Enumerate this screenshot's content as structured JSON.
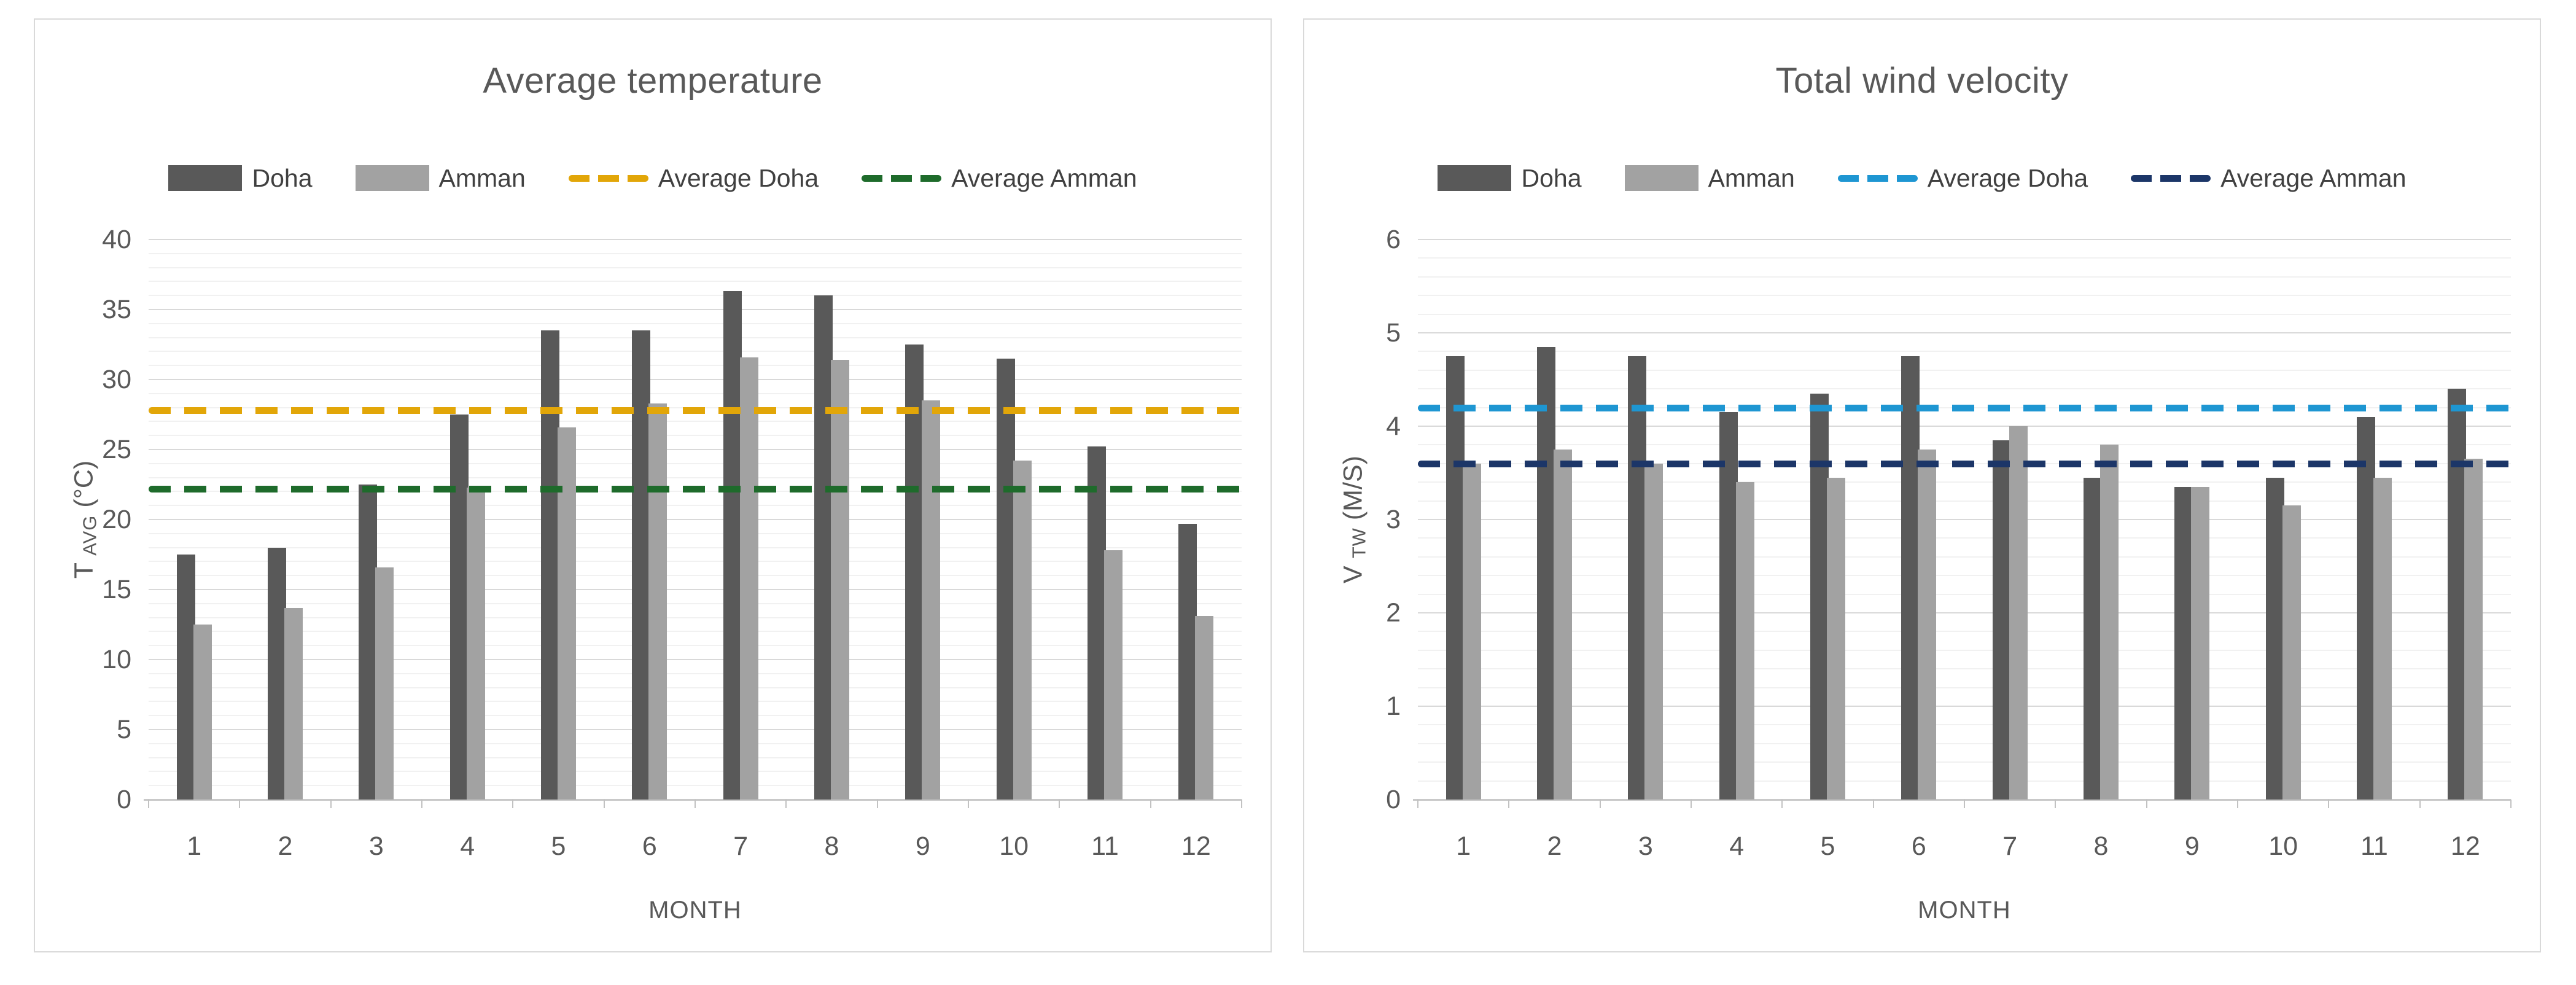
{
  "page": {
    "background": "#ffffff"
  },
  "chart_data": [
    {
      "type": "bar",
      "title": "Average temperature",
      "xlabel": "MONTH",
      "ylabel": {
        "main": "T",
        "sub": "AVG",
        "unit": "(°C)"
      },
      "categories": [
        "1",
        "2",
        "3",
        "4",
        "5",
        "6",
        "7",
        "8",
        "9",
        "10",
        "11",
        "12"
      ],
      "series": [
        {
          "name": "Doha",
          "color": "#595959",
          "values": [
            17.5,
            18.0,
            22.5,
            27.5,
            33.5,
            33.5,
            36.3,
            36.0,
            32.5,
            31.5,
            25.2,
            19.7
          ]
        },
        {
          "name": "Amman",
          "color": "#a2a2a2",
          "values": [
            12.5,
            13.7,
            16.6,
            22.3,
            26.6,
            28.3,
            31.6,
            31.4,
            28.5,
            24.2,
            17.8,
            13.1
          ]
        }
      ],
      "avg_lines": [
        {
          "name": "Average Doha",
          "color": "#e2a608",
          "value": 27.8
        },
        {
          "name": "Average Amman",
          "color": "#1e6b2b",
          "value": 22.2
        }
      ],
      "ylim": [
        0,
        40
      ],
      "y_major": 5,
      "y_minor": 1,
      "y_ticks": [
        "0",
        "5",
        "10",
        "15",
        "20",
        "25",
        "30",
        "35",
        "40"
      ],
      "grid": true,
      "legend_position": "top"
    },
    {
      "type": "bar",
      "title": "Total wind velocity",
      "xlabel": "MONTH",
      "ylabel": {
        "main": "V",
        "sub": "TW",
        "unit": "(M/S)"
      },
      "categories": [
        "1",
        "2",
        "3",
        "4",
        "5",
        "6",
        "7",
        "8",
        "9",
        "10",
        "11",
        "12"
      ],
      "series": [
        {
          "name": "Doha",
          "color": "#595959",
          "values": [
            4.75,
            4.85,
            4.75,
            4.15,
            4.35,
            4.75,
            3.85,
            3.45,
            3.35,
            3.45,
            4.1,
            4.4
          ]
        },
        {
          "name": "Amman",
          "color": "#a2a2a2",
          "values": [
            3.6,
            3.75,
            3.6,
            3.4,
            3.45,
            3.75,
            4.0,
            3.8,
            3.35,
            3.15,
            3.45,
            3.65
          ]
        }
      ],
      "avg_lines": [
        {
          "name": "Average Doha",
          "color": "#1e96d2",
          "value": 4.2
        },
        {
          "name": "Average Amman",
          "color": "#1c3668",
          "value": 3.6
        }
      ],
      "ylim": [
        0,
        6
      ],
      "y_major": 1,
      "y_minor": 0.2,
      "y_ticks": [
        "0",
        "1",
        "2",
        "3",
        "4",
        "5",
        "6"
      ],
      "grid": true,
      "legend_position": "top"
    }
  ]
}
